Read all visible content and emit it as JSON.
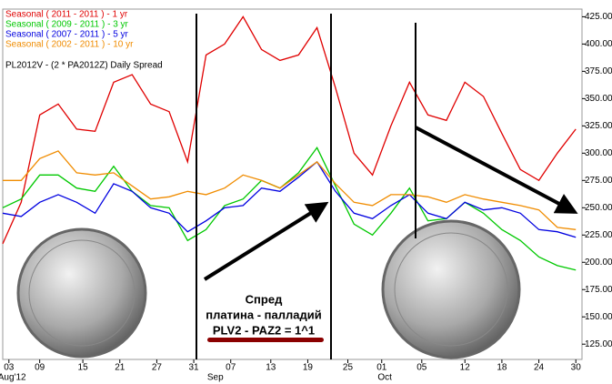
{
  "chart_data": {
    "type": "line",
    "subtitle": "PL2012V - (2 * PA2012Z) Daily Spread",
    "annotation": [
      "Спред",
      "платина - палладий",
      "PLV2 - PAZ2 = 1^1"
    ],
    "x": [
      0,
      3,
      6,
      9,
      12,
      15,
      18,
      21,
      24,
      27,
      30,
      33,
      36,
      39,
      42,
      45,
      48,
      51,
      54,
      57,
      60,
      63,
      66,
      69,
      72,
      75,
      78,
      81,
      84,
      87,
      90,
      93
    ],
    "series": [
      {
        "name": "Seasonal ( 2011 - 2011 ) - 1 yr",
        "color": "#e00000",
        "values": [
          217,
          255,
          335,
          345,
          322,
          320,
          365,
          372,
          345,
          338,
          292,
          390,
          400,
          425,
          395,
          385,
          390,
          415,
          360,
          300,
          280,
          325,
          365,
          335,
          330,
          365,
          352,
          318,
          285,
          275,
          300,
          322
        ]
      },
      {
        "name": "Seasonal ( 2009 - 2011 ) - 3 yr",
        "color": "#00c800",
        "values": [
          250,
          258,
          280,
          280,
          268,
          265,
          288,
          265,
          252,
          250,
          220,
          230,
          252,
          258,
          275,
          268,
          282,
          305,
          270,
          235,
          225,
          245,
          268,
          238,
          240,
          255,
          245,
          230,
          220,
          205,
          197,
          193
        ]
      },
      {
        "name": "Seasonal ( 2007 - 2011 ) - 5 yr",
        "color": "#0000e0",
        "values": [
          245,
          242,
          255,
          262,
          255,
          245,
          272,
          265,
          250,
          245,
          228,
          238,
          250,
          252,
          268,
          265,
          278,
          292,
          265,
          245,
          240,
          252,
          262,
          245,
          240,
          255,
          248,
          250,
          245,
          230,
          228,
          223
        ]
      },
      {
        "name": "Seasonal ( 2002 - 2011 ) - 10 yr",
        "color": "#f08c00",
        "values": [
          275,
          275,
          295,
          302,
          282,
          280,
          282,
          270,
          258,
          260,
          265,
          262,
          268,
          280,
          275,
          268,
          280,
          292,
          272,
          255,
          252,
          262,
          262,
          260,
          255,
          262,
          258,
          255,
          252,
          248,
          232,
          230
        ]
      }
    ],
    "xlim": [
      0,
      94
    ],
    "xticks": [
      {
        "value": 1,
        "label": "03"
      },
      {
        "value": 6,
        "label": "09"
      },
      {
        "value": 13,
        "label": "15"
      },
      {
        "value": 19,
        "label": "21"
      },
      {
        "value": 25,
        "label": "27"
      },
      {
        "value": 31,
        "label": "31"
      },
      {
        "value": 37,
        "label": "07"
      },
      {
        "value": 43.5,
        "label": "13"
      },
      {
        "value": 49.5,
        "label": "19"
      },
      {
        "value": 56,
        "label": "25"
      },
      {
        "value": 61.5,
        "label": "01"
      },
      {
        "value": 68,
        "label": "05"
      },
      {
        "value": 75,
        "label": "12"
      },
      {
        "value": 81,
        "label": "18"
      },
      {
        "value": 87,
        "label": "24"
      },
      {
        "value": 93,
        "label": "30"
      }
    ],
    "month_ticks": [
      {
        "value": 1.5,
        "label": "Aug'12"
      },
      {
        "value": 34.5,
        "label": "Sep"
      },
      {
        "value": 62,
        "label": "Oct"
      }
    ],
    "ylim": [
      111,
      432
    ],
    "yticks": [
      {
        "value": 125,
        "label": "125.00"
      },
      {
        "value": 150,
        "label": "150.00"
      },
      {
        "value": 175,
        "label": "175.00"
      },
      {
        "value": 200,
        "label": "200.00"
      },
      {
        "value": 225,
        "label": "225.00"
      },
      {
        "value": 250,
        "label": "250.00"
      },
      {
        "value": 275,
        "label": "275.00"
      },
      {
        "value": 300,
        "label": "300.00"
      },
      {
        "value": 325,
        "label": "325.00"
      },
      {
        "value": 350,
        "label": "350.00"
      },
      {
        "value": 375,
        "label": "375.00"
      },
      {
        "value": 400,
        "label": "400.00"
      },
      {
        "value": 425,
        "label": "425.00"
      }
    ],
    "grid": false
  }
}
